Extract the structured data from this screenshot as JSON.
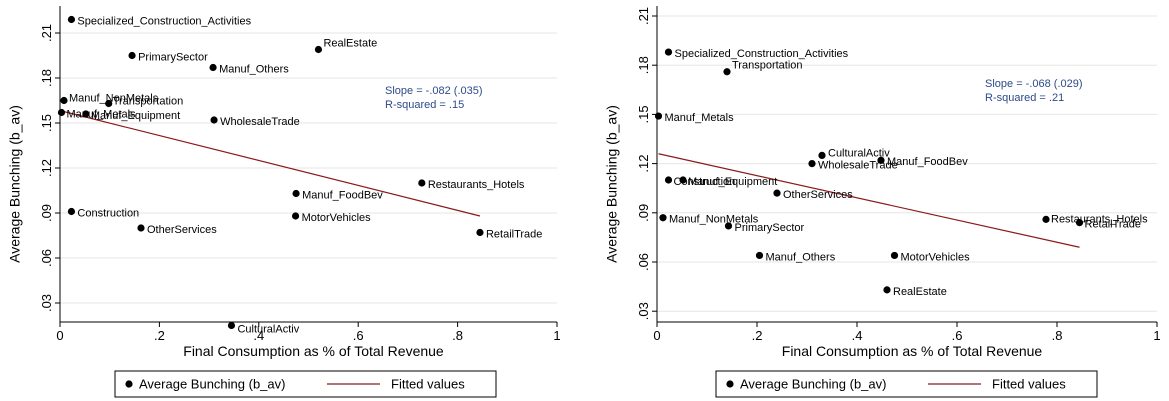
{
  "colors": {
    "points": "#000000",
    "fitted_line": "#8b1a1a",
    "annotation": "#2d4a8a",
    "grid": "#e6e6e6"
  },
  "chart_data": [
    {
      "type": "scatter",
      "xlabel": "Final Consumption as % of Total Revenue",
      "ylabel": "Average Bunching (b_av)",
      "xlim": [
        0,
        1
      ],
      "ylim": [
        0.015,
        0.215
      ],
      "xticks": [
        0,
        0.2,
        0.4,
        0.6,
        0.8,
        1
      ],
      "xtick_labels": [
        "0",
        ".2",
        ".4",
        ".6",
        ".8",
        "1"
      ],
      "yticks": [
        0.03,
        0.06,
        0.09,
        0.12,
        0.15,
        0.18,
        0.21
      ],
      "ytick_labels": [
        ".03",
        ".06",
        ".09",
        ".12",
        ".15",
        ".18",
        ".21"
      ],
      "grid": true,
      "legend_placement": "bottom",
      "annotations": [
        "Slope = -.082 (.035)",
        "R-squared = .15"
      ],
      "series": [
        {
          "name": "Average Bunching (b_av)",
          "points": [
            {
              "label": "Specialized_Construction_Activities",
              "x": 0.023,
              "y": 0.219
            },
            {
              "label": "RealEstate",
              "x": 0.52,
              "y": 0.199
            },
            {
              "label": "PrimarySector",
              "x": 0.145,
              "y": 0.195
            },
            {
              "label": "Manuf_Others",
              "x": 0.308,
              "y": 0.187
            },
            {
              "label": "Manuf_NonMetals",
              "x": 0.008,
              "y": 0.165
            },
            {
              "label": "Transportation",
              "x": 0.098,
              "y": 0.163
            },
            {
              "label": "Manuf_Metals",
              "x": 0.003,
              "y": 0.157
            },
            {
              "label": "Manuf_Equipment",
              "x": 0.052,
              "y": 0.156
            },
            {
              "label": "WholesaleTrade",
              "x": 0.31,
              "y": 0.152
            },
            {
              "label": "Restaurants_Hotels",
              "x": 0.728,
              "y": 0.11
            },
            {
              "label": "Manuf_FoodBev",
              "x": 0.475,
              "y": 0.103
            },
            {
              "label": "Construction",
              "x": 0.023,
              "y": 0.091
            },
            {
              "label": "MotorVehicles",
              "x": 0.474,
              "y": 0.088
            },
            {
              "label": "OtherServices",
              "x": 0.163,
              "y": 0.08
            },
            {
              "label": "RetailTrade",
              "x": 0.845,
              "y": 0.077
            },
            {
              "label": "CulturalActiv",
              "x": 0.345,
              "y": 0.015
            }
          ]
        },
        {
          "name": "Fitted values",
          "type": "line",
          "x": [
            0.003,
            0.845
          ],
          "y": [
            0.158,
            0.088
          ]
        }
      ]
    },
    {
      "type": "scatter",
      "xlabel": "Final Consumption as % of Total Revenue",
      "ylabel": "Average Bunching (b_av)",
      "xlim": [
        0,
        1
      ],
      "ylim": [
        0.028,
        0.215
      ],
      "xticks": [
        0,
        0.2,
        0.4,
        0.6,
        0.8,
        1
      ],
      "xtick_labels": [
        "0",
        ".2",
        ".4",
        ".6",
        ".8",
        "1"
      ],
      "yticks": [
        0.03,
        0.06,
        0.09,
        0.12,
        0.15,
        0.18,
        0.21
      ],
      "ytick_labels": [
        ".03",
        ".06",
        ".09",
        ".12",
        ".15",
        ".18",
        ".21"
      ],
      "grid": true,
      "legend_placement": "bottom",
      "annotations": [
        "Slope = -.068 (.029)",
        "R-squared = .21"
      ],
      "series": [
        {
          "name": "Average Bunching (b_av)",
          "points": [
            {
              "label": "Specialized_Construction_Activities",
              "x": 0.023,
              "y": 0.188
            },
            {
              "label": "Transportation",
              "x": 0.14,
              "y": 0.176
            },
            {
              "label": "Manuf_Metals",
              "x": 0.003,
              "y": 0.149
            },
            {
              "label": "CulturalActiv",
              "x": 0.33,
              "y": 0.125
            },
            {
              "label": "Manuf_FoodBev",
              "x": 0.448,
              "y": 0.122
            },
            {
              "label": "WholesaleTrade",
              "x": 0.31,
              "y": 0.12
            },
            {
              "label": "Construction",
              "x": 0.023,
              "y": 0.11
            },
            {
              "label": "Manuf_Equipment",
              "x": 0.052,
              "y": 0.11
            },
            {
              "label": "OtherServices",
              "x": 0.24,
              "y": 0.102
            },
            {
              "label": "Manuf_NonMetals",
              "x": 0.012,
              "y": 0.087
            },
            {
              "label": "PrimarySector",
              "x": 0.143,
              "y": 0.082
            },
            {
              "label": "Restaurants_Hotels",
              "x": 0.778,
              "y": 0.086
            },
            {
              "label": "RetailTrade",
              "x": 0.845,
              "y": 0.084
            },
            {
              "label": "Manuf_Others",
              "x": 0.205,
              "y": 0.064
            },
            {
              "label": "MotorVehicles",
              "x": 0.475,
              "y": 0.064
            },
            {
              "label": "RealEstate",
              "x": 0.46,
              "y": 0.043
            }
          ]
        },
        {
          "name": "Fitted values",
          "type": "line",
          "x": [
            0.003,
            0.845
          ],
          "y": [
            0.126,
            0.069
          ]
        }
      ]
    }
  ]
}
